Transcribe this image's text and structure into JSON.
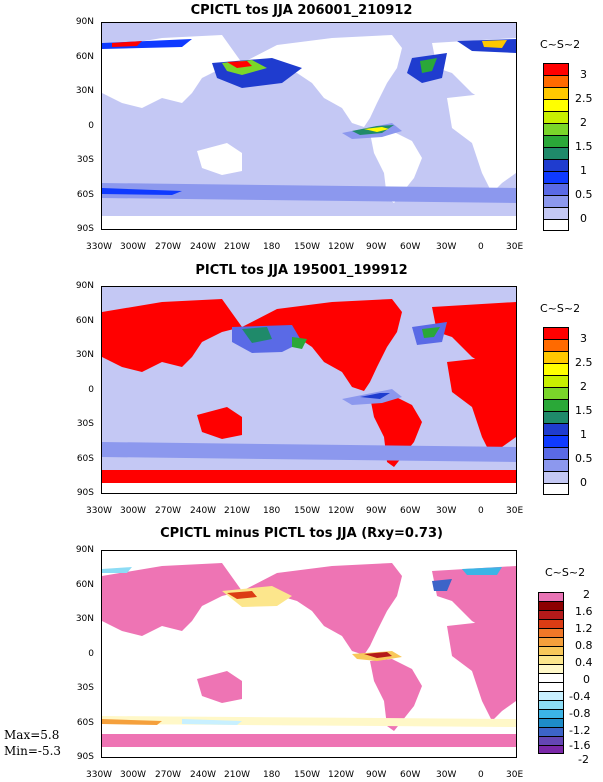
{
  "panels": [
    {
      "title": "CPICTL tos JJA 206001_210912",
      "units": "C~S~2",
      "legend": {
        "labels": [
          "3",
          "2.5",
          "2",
          "1.5",
          "1",
          "0.5",
          "0"
        ],
        "colors": [
          "#ff0000",
          "#ff6a00",
          "#ffc800",
          "#ffff00",
          "#c8f000",
          "#7ad62a",
          "#2aa838",
          "#1f8a6a",
          "#1f3ccf",
          "#0f3aff",
          "#5a6ae6",
          "#8c98ee",
          "#c4c8f4",
          "#ffffff"
        ]
      }
    },
    {
      "title": "PICTL tos JJA 195001_199912",
      "units": "C~S~2",
      "legend": {
        "labels": [
          "3",
          "2.5",
          "2",
          "1.5",
          "1",
          "0.5",
          "0"
        ],
        "colors": [
          "#ff0000",
          "#ff6a00",
          "#ffc800",
          "#ffff00",
          "#c8f000",
          "#7ad62a",
          "#2aa838",
          "#1f8a6a",
          "#1f3ccf",
          "#0f3aff",
          "#5a6ae6",
          "#8c98ee",
          "#c4c8f4",
          "#ffffff"
        ]
      }
    },
    {
      "title": "CPICTL minus PICTL tos JJA (Rxy=0.73)",
      "units": "C~S~2",
      "legend": {
        "labels": [
          "2",
          "1.6",
          "1.2",
          "0.8",
          "0.4",
          "0",
          "-0.4",
          "-0.8",
          "-1.2",
          "-1.6",
          "-2"
        ],
        "colors": [
          "#e873b4",
          "#8c0000",
          "#b41a1a",
          "#dc3c14",
          "#f07828",
          "#f5a03c",
          "#f8c85a",
          "#fce68c",
          "#fff8c8",
          "#ffffff",
          "#ffffff",
          "#c8f0ff",
          "#8cdcf5",
          "#3cb4e6",
          "#1e8cc8",
          "#3c64c8",
          "#6446b4",
          "#7a28a8"
        ]
      }
    }
  ],
  "lat_labels": [
    "90N",
    "60N",
    "30N",
    "0",
    "30S",
    "60S",
    "90S"
  ],
  "lon_labels": [
    "330W",
    "300W",
    "270W",
    "240W",
    "210W",
    "180",
    "150W",
    "120W",
    "90W",
    "60W",
    "30W",
    "0",
    "30E"
  ],
  "stats": {
    "max": "Max=5.8",
    "min": "Min=-5.3"
  },
  "colors": {
    "land_p1": "#ffffff",
    "land_p2": "#ff0000",
    "land_p3": "#ee74b4",
    "ocean_low": "#c4c8f4",
    "ocean_p3": "#ffffff"
  }
}
